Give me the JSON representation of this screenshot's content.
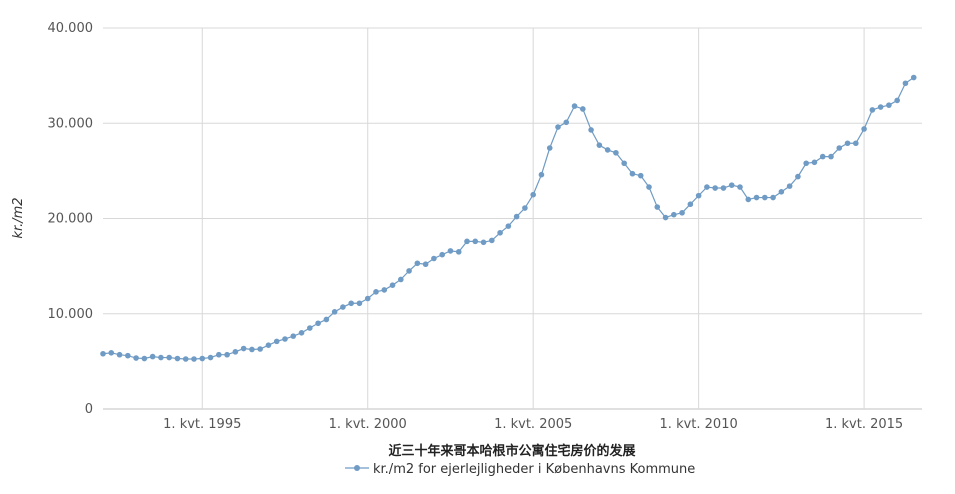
{
  "chart_data": {
    "type": "line",
    "title": "近三十年来哥本哈根市公寓住宅房价的发展",
    "ylabel": "kr./m2",
    "xlabel": "",
    "ylim": [
      0,
      40000
    ],
    "y_ticks": [
      "0",
      "10.000",
      "20.000",
      "30.000",
      "40.000"
    ],
    "y_tick_values": [
      0,
      10000,
      20000,
      30000,
      40000
    ],
    "x_ticks": [
      "1. kvt. 1995",
      "1. kvt. 2000",
      "1. kvt. 2005",
      "1. kvt. 2010",
      "1. kvt. 2015"
    ],
    "x_tick_quarters": [
      "1995Q1",
      "2000Q1",
      "2005Q1",
      "2010Q1",
      "2015Q1"
    ],
    "x_range": [
      "1992Q1",
      "2016Q4"
    ],
    "grid": true,
    "legend_position": "bottom",
    "color": "#6f9bc4",
    "series": [
      {
        "name": "kr./m2 for ejerlejligheder i Københavns Kommune",
        "start_quarter": "1992Q1",
        "values": [
          5800,
          5900,
          5700,
          5600,
          5350,
          5300,
          5500,
          5400,
          5400,
          5300,
          5250,
          5250,
          5300,
          5400,
          5700,
          5700,
          6000,
          6350,
          6250,
          6300,
          6700,
          7100,
          7350,
          7650,
          8000,
          8500,
          9000,
          9400,
          10200,
          10700,
          11100,
          11100,
          11600,
          12300,
          12500,
          13000,
          13600,
          14500,
          15300,
          15200,
          15800,
          16200,
          16600,
          16500,
          17600,
          17600,
          17500,
          17700,
          18500,
          19200,
          20200,
          21100,
          22500,
          24600,
          27400,
          29600,
          30100,
          31800,
          31500,
          29300,
          27700,
          27200,
          26900,
          25800,
          24700,
          24500,
          23300,
          21200,
          20100,
          20400,
          20600,
          21500,
          22400,
          23300,
          23200,
          23200,
          23500,
          23300,
          22000,
          22200,
          22200,
          22200,
          22800,
          23400,
          24400,
          25800,
          25900,
          26500,
          26500,
          27400,
          27900,
          27900,
          29400,
          31400,
          31700,
          31900,
          32400,
          34200,
          34800
        ]
      }
    ]
  }
}
